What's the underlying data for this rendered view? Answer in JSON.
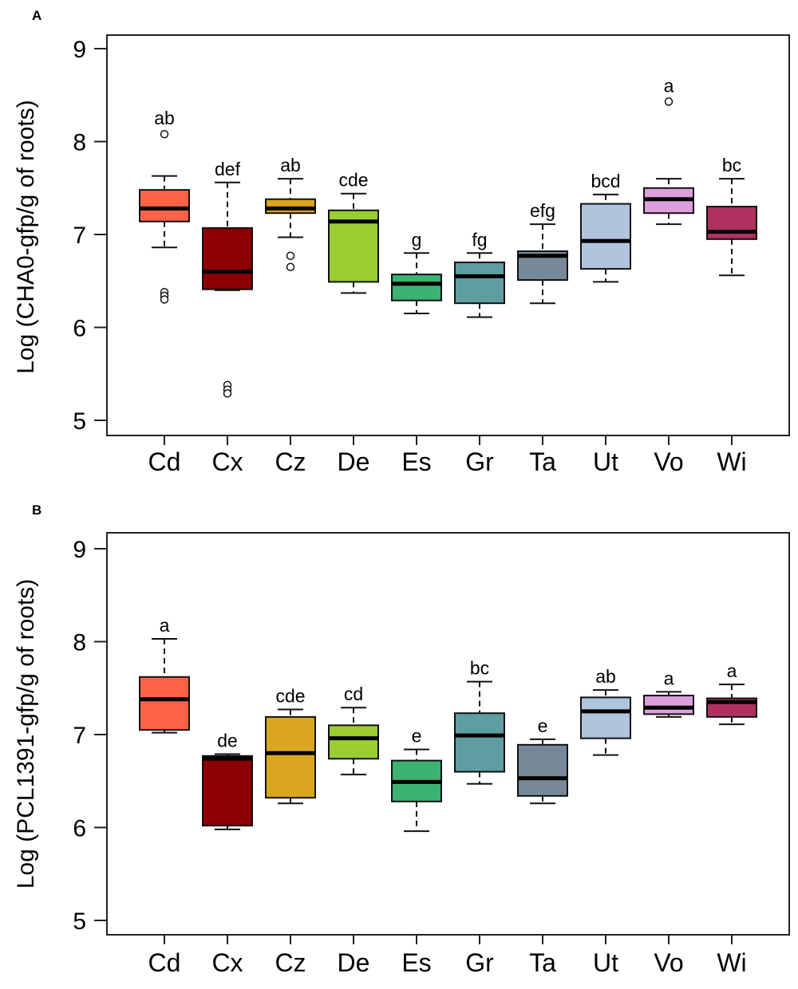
{
  "chart_data": [
    {
      "type": "boxplot",
      "panel_label": "A",
      "ylabel": "Log (CHA0-gfp/g of roots)",
      "xlabel": "",
      "ylim": [
        5,
        9
      ],
      "yticks": [
        "5",
        "6",
        "7",
        "8",
        "9"
      ],
      "grid": false,
      "categories": [
        "Cd",
        "Cx",
        "Cz",
        "De",
        "Es",
        "Gr",
        "Ta",
        "Ut",
        "Vo",
        "Wi"
      ],
      "colors": [
        "#FF6347",
        "#8B0000",
        "#DAA520",
        "#9ACD32",
        "#3CB371",
        "#5F9EA0",
        "#778899",
        "#B0C4DE",
        "#DDA0DD",
        "#B03060"
      ],
      "boxes": [
        {
          "min": 6.86,
          "q1": 7.14,
          "median": 7.28,
          "q3": 7.48,
          "max": 7.63,
          "outliers": [
            8.08,
            6.38,
            6.34,
            6.3
          ],
          "letters": "ab"
        },
        {
          "min": 6.4,
          "q1": 6.41,
          "median": 6.6,
          "q3": 7.07,
          "max": 7.56,
          "outliers": [
            5.38,
            5.33,
            5.29
          ],
          "letters": "def"
        },
        {
          "min": 6.97,
          "q1": 7.23,
          "median": 7.28,
          "q3": 7.38,
          "max": 7.6,
          "outliers": [
            6.77,
            6.65
          ],
          "letters": "ab"
        },
        {
          "min": 6.37,
          "q1": 6.49,
          "median": 7.14,
          "q3": 7.26,
          "max": 7.44,
          "outliers": [],
          "letters": "cde"
        },
        {
          "min": 6.15,
          "q1": 6.29,
          "median": 6.47,
          "q3": 6.57,
          "max": 6.8,
          "outliers": [],
          "letters": "g"
        },
        {
          "min": 6.11,
          "q1": 6.26,
          "median": 6.55,
          "q3": 6.7,
          "max": 6.8,
          "outliers": [],
          "letters": "fg"
        },
        {
          "min": 6.26,
          "q1": 6.51,
          "median": 6.77,
          "q3": 6.82,
          "max": 7.11,
          "outliers": [],
          "letters": "efg"
        },
        {
          "min": 6.49,
          "q1": 6.63,
          "median": 6.93,
          "q3": 7.33,
          "max": 7.43,
          "outliers": [],
          "letters": "bcd"
        },
        {
          "min": 7.11,
          "q1": 7.23,
          "median": 7.38,
          "q3": 7.5,
          "max": 7.6,
          "outliers": [
            8.43
          ],
          "letters": "a"
        },
        {
          "min": 6.56,
          "q1": 6.95,
          "median": 7.03,
          "q3": 7.3,
          "max": 7.6,
          "outliers": [],
          "letters": "bc"
        }
      ]
    },
    {
      "type": "boxplot",
      "panel_label": "B",
      "ylabel": "Log (PCL1391-gfp/g of roots)",
      "xlabel": "",
      "ylim": [
        5,
        9
      ],
      "yticks": [
        "5",
        "6",
        "7",
        "8",
        "9"
      ],
      "grid": false,
      "categories": [
        "Cd",
        "Cx",
        "Cz",
        "De",
        "Es",
        "Gr",
        "Ta",
        "Ut",
        "Vo",
        "Wi"
      ],
      "colors": [
        "#FF6347",
        "#8B0000",
        "#DAA520",
        "#9ACD32",
        "#3CB371",
        "#5F9EA0",
        "#778899",
        "#B0C4DE",
        "#DDA0DD",
        "#B03060"
      ],
      "boxes": [
        {
          "min": 7.02,
          "q1": 7.05,
          "median": 7.38,
          "q3": 7.62,
          "max": 8.03,
          "outliers": [],
          "letters": "a"
        },
        {
          "min": 5.98,
          "q1": 6.02,
          "median": 6.74,
          "q3": 6.77,
          "max": 6.79,
          "outliers": [],
          "letters": "de"
        },
        {
          "min": 6.26,
          "q1": 6.32,
          "median": 6.8,
          "q3": 7.19,
          "max": 7.27,
          "outliers": [],
          "letters": "cde"
        },
        {
          "min": 6.57,
          "q1": 6.74,
          "median": 6.96,
          "q3": 7.1,
          "max": 7.29,
          "outliers": [],
          "letters": "cd"
        },
        {
          "min": 5.96,
          "q1": 6.28,
          "median": 6.49,
          "q3": 6.72,
          "max": 6.84,
          "outliers": [],
          "letters": "e"
        },
        {
          "min": 6.47,
          "q1": 6.6,
          "median": 6.99,
          "q3": 7.23,
          "max": 7.57,
          "outliers": [],
          "letters": "bc"
        },
        {
          "min": 6.26,
          "q1": 6.34,
          "median": 6.53,
          "q3": 6.89,
          "max": 6.95,
          "outliers": [],
          "letters": "e"
        },
        {
          "min": 6.78,
          "q1": 6.96,
          "median": 7.25,
          "q3": 7.4,
          "max": 7.48,
          "outliers": [],
          "letters": "ab"
        },
        {
          "min": 7.19,
          "q1": 7.22,
          "median": 7.29,
          "q3": 7.42,
          "max": 7.46,
          "outliers": [],
          "letters": "a"
        },
        {
          "min": 7.11,
          "q1": 7.19,
          "median": 7.35,
          "q3": 7.39,
          "max": 7.54,
          "outliers": [],
          "letters": "a"
        }
      ]
    }
  ]
}
